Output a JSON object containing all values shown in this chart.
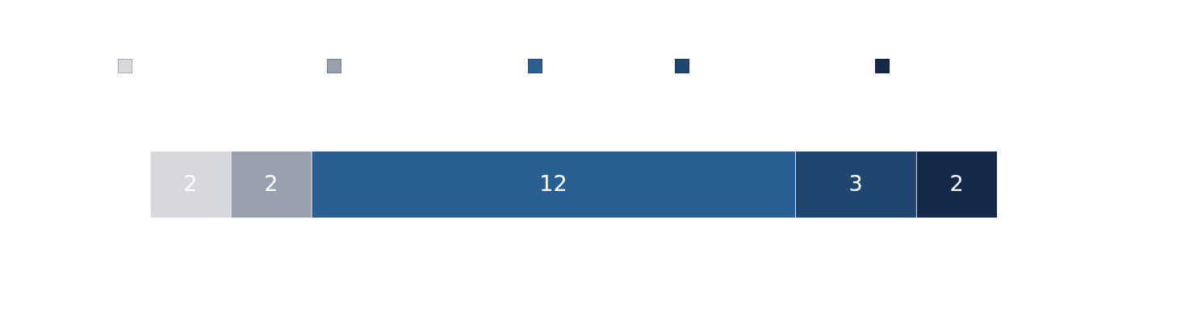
{
  "chart_data": {
    "type": "bar",
    "orientation": "horizontal",
    "stacked": true,
    "categories": [
      null
    ],
    "series": [
      {
        "color": "#d6d8dd",
        "values": [
          2
        ]
      },
      {
        "color": "#99a0ad",
        "values": [
          2
        ]
      },
      {
        "color": "#2a5f93",
        "values": [
          12
        ]
      },
      {
        "color": "#1f466f",
        "values": [
          3
        ]
      },
      {
        "color": "#16294a",
        "values": [
          2
        ]
      }
    ],
    "data_labels": true
  }
}
